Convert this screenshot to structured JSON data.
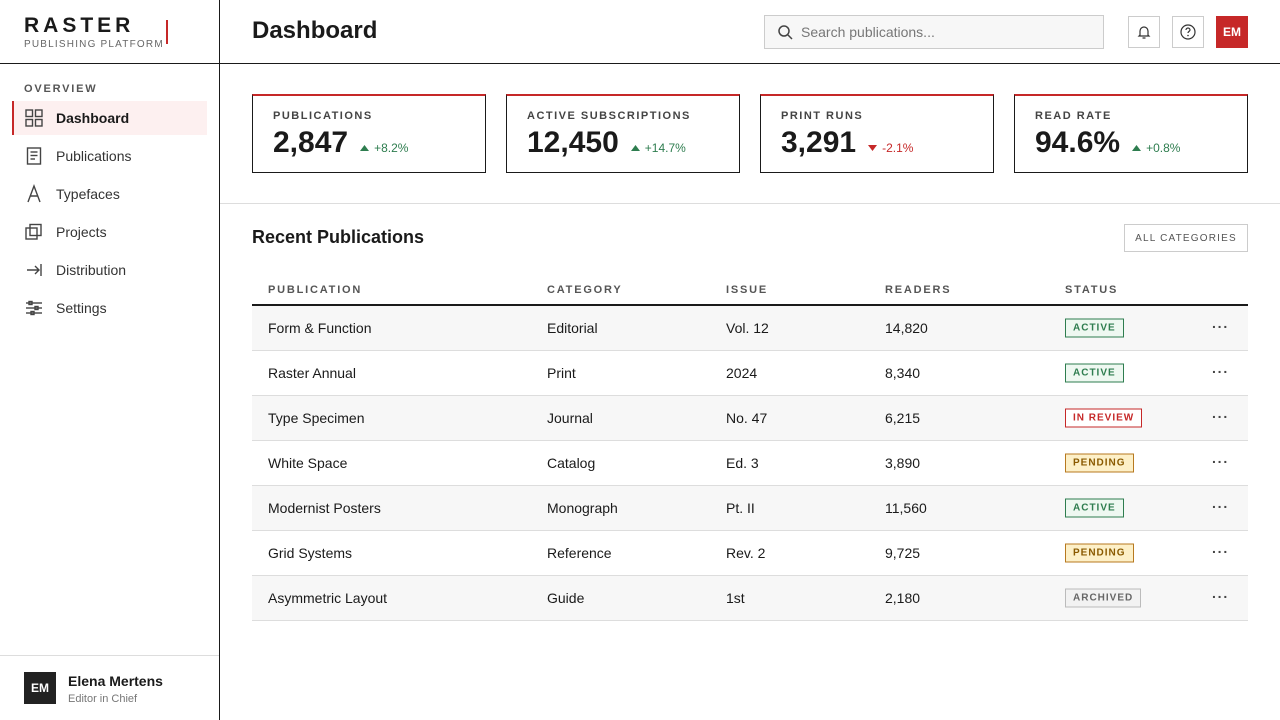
{
  "brand": {
    "name": "RASTER",
    "tagline": "PUBLISHING PLATFORM"
  },
  "sidebar": {
    "section": "OVERVIEW",
    "nav": [
      {
        "label": "Dashboard",
        "active": true
      },
      {
        "label": "Publications"
      },
      {
        "label": "Typefaces"
      },
      {
        "label": "Projects"
      },
      {
        "label": "Distribution"
      },
      {
        "label": "Settings"
      }
    ],
    "user": {
      "initials": "EM",
      "name": "Elena Mertens",
      "role": "Editor in Chief"
    }
  },
  "header": {
    "title": "Dashboard",
    "search_placeholder": "Search publications...",
    "avatar": "EM"
  },
  "stats": [
    {
      "label": "PUBLICATIONS",
      "value": "2,847",
      "change": "+8.2%",
      "trend": "up"
    },
    {
      "label": "ACTIVE SUBSCRIPTIONS",
      "value": "12,450",
      "change": "+14.7%",
      "trend": "up"
    },
    {
      "label": "PRINT RUNS",
      "value": "3,291",
      "change": "-2.1%",
      "trend": "down"
    },
    {
      "label": "READ RATE",
      "value": "94.6%",
      "change": "+0.8%",
      "trend": "up"
    }
  ],
  "recent": {
    "title": "Recent Publications",
    "filter": "ALL CATEGORIES",
    "columns": [
      "PUBLICATION",
      "CATEGORY",
      "ISSUE",
      "READERS",
      "STATUS"
    ],
    "rows": [
      {
        "cells": [
          "Form & Function",
          "Editorial",
          "Vol. 12",
          "14,820"
        ],
        "status": "ACTIVE",
        "status_color": "green"
      },
      {
        "cells": [
          "Raster Annual",
          "Print",
          "2024",
          "8,340"
        ],
        "status": "ACTIVE",
        "status_color": "green"
      },
      {
        "cells": [
          "Type Specimen",
          "Journal",
          "No. 47",
          "6,215"
        ],
        "status": "IN REVIEW",
        "status_color": "red"
      },
      {
        "cells": [
          "White Space",
          "Catalog",
          "Ed. 3",
          "3,890"
        ],
        "status": "PENDING",
        "status_color": "yellow"
      },
      {
        "cells": [
          "Modernist Posters",
          "Monograph",
          "Pt. II",
          "11,560"
        ],
        "status": "ACTIVE",
        "status_color": "green"
      },
      {
        "cells": [
          "Grid Systems",
          "Reference",
          "Rev. 2",
          "9,725"
        ],
        "status": "PENDING",
        "status_color": "yellow"
      },
      {
        "cells": [
          "Asymmetric Layout",
          "Guide",
          "1st",
          "2,180"
        ],
        "status": "ARCHIVED",
        "status_color": "gray"
      }
    ]
  }
}
